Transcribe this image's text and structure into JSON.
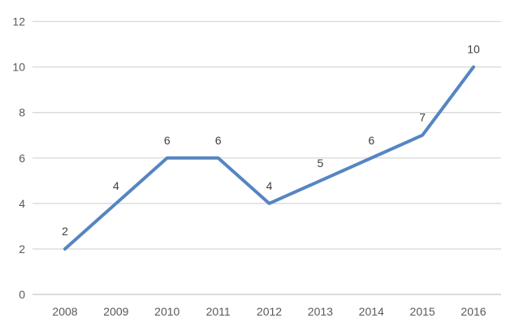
{
  "chart_data": {
    "type": "line",
    "title": "",
    "xlabel": "",
    "ylabel": "",
    "categories": [
      "2008",
      "2009",
      "2010",
      "2011",
      "2012",
      "2013",
      "2014",
      "2015",
      "2016"
    ],
    "values": [
      2,
      4,
      6,
      6,
      4,
      5,
      6,
      7,
      10
    ],
    "data_labels": [
      "2",
      "4",
      "6",
      "6",
      "4",
      "5",
      "6",
      "7",
      "10"
    ],
    "y_ticks": [
      0,
      2,
      4,
      6,
      8,
      10,
      12
    ],
    "ylim": [
      0,
      12
    ],
    "grid": true,
    "legend": false,
    "colors": {
      "series_line": "#5585C2",
      "gridline": "#D9D9D9",
      "axis_line": "#C8C8C8",
      "tick_label": "#595959",
      "data_label": "#404040",
      "background": "#FFFFFF"
    },
    "style": {
      "line_width": 4,
      "tick_font_size": 14,
      "data_label_font_size": 14
    }
  }
}
